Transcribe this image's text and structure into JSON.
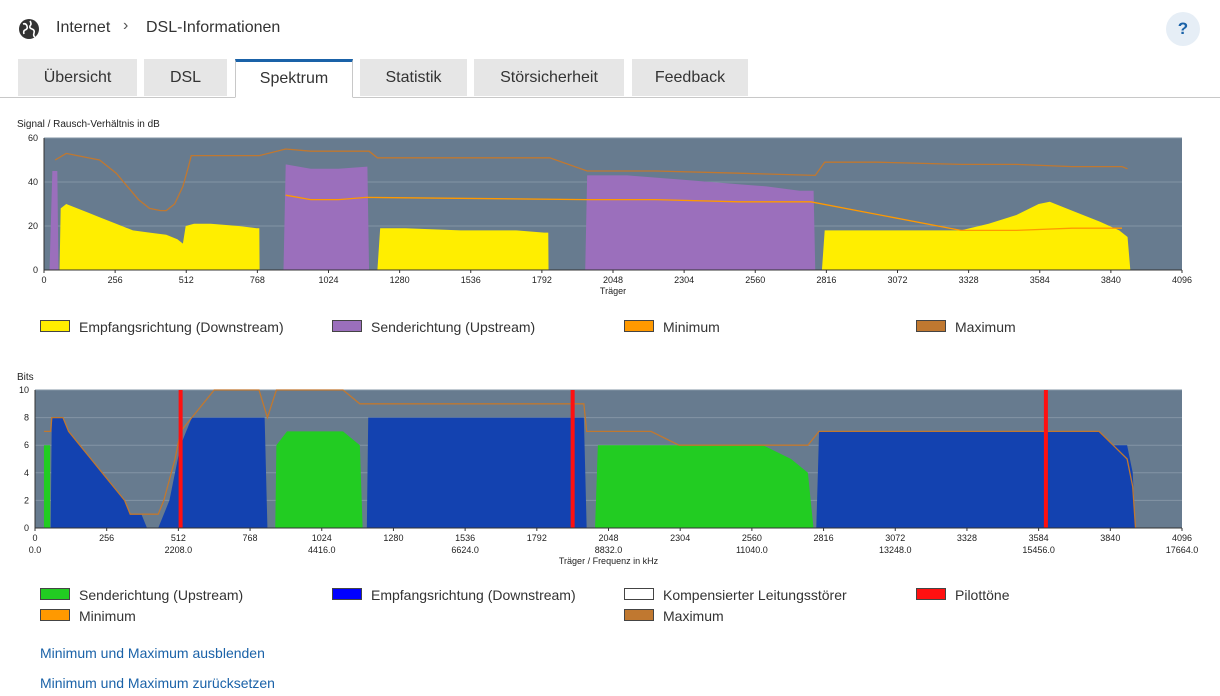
{
  "breadcrumb": {
    "item1": "Internet",
    "item2": "DSL-Informationen"
  },
  "help_label": "?",
  "tabs": [
    {
      "label": "Übersicht",
      "active": false
    },
    {
      "label": "DSL",
      "active": false
    },
    {
      "label": "Spektrum",
      "active": true
    },
    {
      "label": "Statistik",
      "active": false
    },
    {
      "label": "Störsicherheit",
      "active": false
    },
    {
      "label": "Feedback",
      "active": false
    }
  ],
  "colors": {
    "accent": "#1a62a8",
    "plot_bg": "#677b8f",
    "downstream_snr": "#ffee00",
    "upstream_snr": "#9b6fbc",
    "minimum": "#ff9900",
    "maximum": "#c07830",
    "upstream_bits": "#22cc22",
    "downstream_bits": "#1342b0",
    "pilot": "#ff1010"
  },
  "chart_data": [
    {
      "type": "area",
      "title": "Signal / Rausch-Verhältnis in dB",
      "xlabel": "Träger",
      "ylabel": "",
      "xlim": [
        0,
        4096
      ],
      "ylim": [
        0,
        60
      ],
      "x_ticks": [
        0,
        256,
        512,
        768,
        1024,
        1280,
        1536,
        1792,
        2048,
        2304,
        2560,
        2816,
        3072,
        3328,
        3584,
        3840,
        4096
      ],
      "y_ticks": [
        0,
        20,
        40,
        60
      ],
      "series": [
        {
          "name": "Empfangsrichtung (Downstream)",
          "color": "#ffee00",
          "points": [
            [
              56,
              0
            ],
            [
              60,
              28
            ],
            [
              80,
              30
            ],
            [
              120,
              28
            ],
            [
              160,
              26
            ],
            [
              200,
              24
            ],
            [
              240,
              22
            ],
            [
              280,
              20
            ],
            [
              320,
              18
            ],
            [
              380,
              17
            ],
            [
              440,
              16
            ],
            [
              480,
              14
            ],
            [
              500,
              12
            ],
            [
              510,
              20
            ],
            [
              540,
              21
            ],
            [
              600,
              21
            ],
            [
              700,
              20
            ],
            [
              765,
              19
            ],
            [
              775,
              19
            ],
            [
              776,
              0
            ],
            [
              1200,
              0
            ],
            [
              1210,
              19
            ],
            [
              1300,
              19
            ],
            [
              1500,
              18
            ],
            [
              1700,
              18
            ],
            [
              1800,
              17
            ],
            [
              1815,
              17
            ],
            [
              1816,
              0
            ],
            [
              2800,
              0
            ],
            [
              2810,
              18
            ],
            [
              3000,
              18
            ],
            [
              3200,
              18
            ],
            [
              3300,
              18
            ],
            [
              3400,
              21
            ],
            [
              3500,
              25
            ],
            [
              3580,
              30
            ],
            [
              3620,
              31
            ],
            [
              3700,
              27
            ],
            [
              3800,
              22
            ],
            [
              3870,
              18
            ],
            [
              3900,
              15
            ],
            [
              3910,
              0
            ]
          ]
        },
        {
          "name": "Senderichtung (Upstream)",
          "color": "#9b6fbc",
          "points": [
            [
              20,
              0
            ],
            [
              30,
              45
            ],
            [
              48,
              45
            ],
            [
              52,
              0
            ],
            [
              862,
              0
            ],
            [
              870,
              48
            ],
            [
              960,
              46
            ],
            [
              1060,
              46
            ],
            [
              1164,
              47
            ],
            [
              1170,
              0
            ],
            [
              1948,
              0
            ],
            [
              1955,
              43
            ],
            [
              2100,
              43
            ],
            [
              2300,
              41
            ],
            [
              2500,
              39
            ],
            [
              2600,
              38
            ],
            [
              2720,
              36
            ],
            [
              2770,
              36
            ],
            [
              2776,
              0
            ]
          ]
        },
        {
          "name": "Minimum",
          "color": "#ff9900",
          "points": [
            [
              870,
              34
            ],
            [
              960,
              32
            ],
            [
              1060,
              32
            ],
            [
              1160,
              33
            ],
            [
              1955,
              32
            ],
            [
              2200,
              32
            ],
            [
              2500,
              31
            ],
            [
              2760,
              31
            ],
            [
              3300,
              18
            ],
            [
              3500,
              18
            ],
            [
              3700,
              19
            ],
            [
              3880,
              19
            ]
          ]
        },
        {
          "name": "Maximum",
          "color": "#c07830",
          "points": [
            [
              40,
              50
            ],
            [
              80,
              53
            ],
            [
              120,
              52
            ],
            [
              200,
              50
            ],
            [
              260,
              44
            ],
            [
              300,
              38
            ],
            [
              340,
              32
            ],
            [
              380,
              28
            ],
            [
              420,
              27
            ],
            [
              440,
              27
            ],
            [
              470,
              30
            ],
            [
              500,
              38
            ],
            [
              520,
              47
            ],
            [
              530,
              52
            ],
            [
              560,
              52
            ],
            [
              770,
              52
            ],
            [
              775,
              52
            ],
            [
              870,
              55
            ],
            [
              960,
              54
            ],
            [
              1060,
              54
            ],
            [
              1170,
              54
            ],
            [
              1200,
              51
            ],
            [
              1300,
              51
            ],
            [
              1400,
              51
            ],
            [
              1500,
              51
            ],
            [
              1700,
              51
            ],
            [
              1800,
              51
            ],
            [
              1820,
              51
            ],
            [
              1955,
              45
            ],
            [
              2200,
              45
            ],
            [
              2500,
              44
            ],
            [
              2776,
              43
            ],
            [
              2810,
              49
            ],
            [
              3000,
              49
            ],
            [
              3300,
              48
            ],
            [
              3500,
              48
            ],
            [
              3700,
              47
            ],
            [
              3880,
              47
            ],
            [
              3900,
              46
            ]
          ]
        }
      ]
    },
    {
      "type": "area",
      "title": "Bits",
      "xlabel": "Träger / Frequenz in kHz",
      "ylabel": "",
      "xlim": [
        0,
        4096
      ],
      "ylim": [
        0,
        10
      ],
      "x_ticks": [
        0,
        256,
        512,
        768,
        1024,
        1280,
        1536,
        1792,
        2048,
        2304,
        2560,
        2816,
        3072,
        3328,
        3584,
        3840,
        4096
      ],
      "freq_ticks": [
        "0.0",
        "2208.0",
        "4416.0",
        "6624.0",
        "8832.0",
        "11040.0",
        "13248.0",
        "15456.0",
        "17664.0"
      ],
      "y_ticks": [
        0,
        2,
        4,
        6,
        8,
        10
      ],
      "pilot_tones": [
        520,
        1920,
        3610
      ],
      "series": [
        {
          "name": "Senderichtung (Upstream)",
          "color": "#22cc22",
          "points": [
            [
              32,
              0
            ],
            [
              32,
              6
            ],
            [
              54,
              6
            ],
            [
              54,
              0
            ],
            [
              858,
              0
            ],
            [
              862,
              6
            ],
            [
              900,
              7
            ],
            [
              1000,
              7
            ],
            [
              1100,
              7
            ],
            [
              1160,
              6
            ],
            [
              1170,
              0
            ],
            [
              2000,
              0
            ],
            [
              2010,
              6
            ],
            [
              2200,
              6
            ],
            [
              2300,
              6
            ],
            [
              2400,
              6
            ],
            [
              2500,
              6
            ],
            [
              2600,
              6
            ],
            [
              2700,
              5
            ],
            [
              2760,
              4
            ],
            [
              2780,
              0
            ]
          ]
        },
        {
          "name": "Empfangsrichtung (Downstream)",
          "color": "#1342b0",
          "points": [
            [
              56,
              0
            ],
            [
              60,
              8
            ],
            [
              100,
              8
            ],
            [
              120,
              7
            ],
            [
              160,
              6
            ],
            [
              200,
              5
            ],
            [
              240,
              4
            ],
            [
              280,
              3
            ],
            [
              320,
              2
            ],
            [
              340,
              1
            ],
            [
              380,
              1
            ],
            [
              400,
              0
            ],
            [
              440,
              0
            ],
            [
              460,
              1
            ],
            [
              480,
              2
            ],
            [
              500,
              4
            ],
            [
              520,
              6
            ],
            [
              540,
              7
            ],
            [
              560,
              8
            ],
            [
              820,
              8
            ],
            [
              830,
              0
            ],
            [
              1185,
              0
            ],
            [
              1190,
              8
            ],
            [
              1500,
              8
            ],
            [
              1600,
              8
            ],
            [
              1700,
              8
            ],
            [
              1800,
              8
            ],
            [
              1900,
              8
            ],
            [
              1960,
              8
            ],
            [
              1970,
              0
            ],
            [
              2790,
              0
            ],
            [
              2800,
              7
            ],
            [
              3000,
              7
            ],
            [
              3200,
              7
            ],
            [
              3400,
              7
            ],
            [
              3600,
              7
            ],
            [
              3800,
              7
            ],
            [
              3850,
              6
            ],
            [
              3900,
              6
            ],
            [
              3920,
              4
            ],
            [
              3930,
              0
            ]
          ]
        },
        {
          "name": "Kompensierter Leitungsstörer",
          "color": "#ffffff",
          "points": []
        },
        {
          "name": "Pilottöne",
          "color": "#ff1010",
          "points": [
            [
              520,
              10
            ],
            [
              1920,
              10
            ],
            [
              3610,
              10
            ]
          ]
        },
        {
          "name": "Minimum",
          "color": "#ff9900",
          "points": []
        },
        {
          "name": "Maximum",
          "color": "#c07830",
          "points": [
            [
              32,
              7
            ],
            [
              56,
              7
            ],
            [
              60,
              8
            ],
            [
              100,
              8
            ],
            [
              120,
              7
            ],
            [
              160,
              6
            ],
            [
              200,
              5
            ],
            [
              240,
              4
            ],
            [
              280,
              3
            ],
            [
              320,
              2
            ],
            [
              340,
              1
            ],
            [
              380,
              1
            ],
            [
              400,
              1
            ],
            [
              440,
              1
            ],
            [
              460,
              2
            ],
            [
              500,
              5
            ],
            [
              520,
              7
            ],
            [
              560,
              8
            ],
            [
              600,
              9
            ],
            [
              640,
              10
            ],
            [
              700,
              10
            ],
            [
              800,
              10
            ],
            [
              830,
              8
            ],
            [
              862,
              10
            ],
            [
              900,
              10
            ],
            [
              1000,
              10
            ],
            [
              1100,
              10
            ],
            [
              1160,
              9
            ],
            [
              1190,
              9
            ],
            [
              1300,
              9
            ],
            [
              1400,
              9
            ],
            [
              1500,
              9
            ],
            [
              1600,
              9
            ],
            [
              1700,
              9
            ],
            [
              1800,
              9
            ],
            [
              1900,
              9
            ],
            [
              1960,
              9
            ],
            [
              1970,
              7
            ],
            [
              2010,
              7
            ],
            [
              2200,
              7
            ],
            [
              2300,
              6
            ],
            [
              2400,
              6
            ],
            [
              2500,
              6
            ],
            [
              2600,
              6
            ],
            [
              2700,
              6
            ],
            [
              2760,
              6
            ],
            [
              2800,
              7
            ],
            [
              3000,
              7
            ],
            [
              3200,
              7
            ],
            [
              3400,
              7
            ],
            [
              3600,
              7
            ],
            [
              3800,
              7
            ],
            [
              3850,
              6
            ],
            [
              3900,
              5
            ],
            [
              3920,
              3
            ],
            [
              3930,
              0
            ]
          ]
        }
      ]
    }
  ],
  "legend1": [
    "Empfangsrichtung (Downstream)",
    "Senderichtung (Upstream)",
    "Minimum",
    "Maximum"
  ],
  "legend2": [
    "Senderichtung (Upstream)",
    "Empfangsrichtung (Downstream)",
    "Kompensierter Leitungsstörer",
    "Pilottöne",
    "Minimum",
    "Maximum"
  ],
  "links": {
    "hide_minmax": "Minimum und Maximum ausblenden",
    "reset_minmax": "Minimum und Maximum zurücksetzen"
  }
}
